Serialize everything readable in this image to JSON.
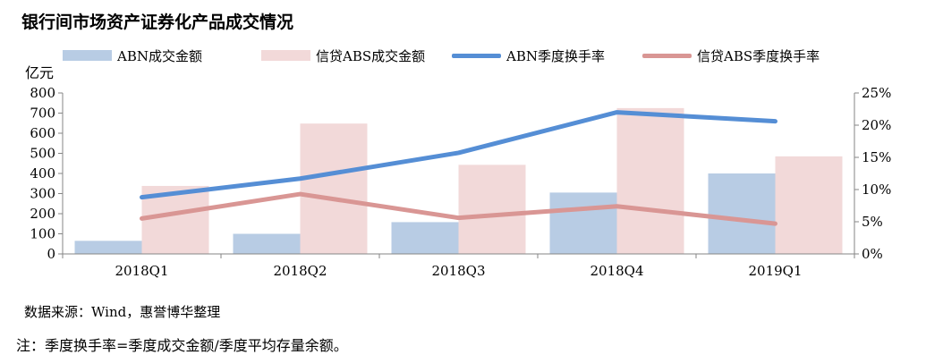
{
  "chart_data": {
    "type": "bar",
    "title": "银行间市场资产证券化产品成交情况",
    "ylabel": "亿元",
    "categories": [
      "2018Q1",
      "2018Q2",
      "2018Q3",
      "2018Q4",
      "2019Q1"
    ],
    "ylim": [
      0,
      800
    ],
    "yticks": [
      "0",
      "100",
      "200",
      "300",
      "400",
      "500",
      "600",
      "700",
      "800"
    ],
    "y2lim": [
      0,
      0.25
    ],
    "y2ticks": [
      "0%",
      "5%",
      "10%",
      "15%",
      "20%",
      "25%"
    ],
    "series": [
      {
        "name": "ABN成交金额",
        "kind": "bar",
        "axis": "left",
        "color": "#b8cce4",
        "values": [
          65,
          100,
          158,
          305,
          400
        ]
      },
      {
        "name": "信贷ABS成交金额",
        "kind": "bar",
        "axis": "left",
        "color": "#f2d9d9",
        "values": [
          338,
          648,
          443,
          725,
          485
        ]
      },
      {
        "name": "ABN季度换手率",
        "kind": "line",
        "axis": "right",
        "color": "#558ed5",
        "values": [
          0.088,
          0.117,
          0.157,
          0.22,
          0.206
        ]
      },
      {
        "name": "信贷ABS季度换手率",
        "kind": "line",
        "axis": "right",
        "color": "#d99694",
        "values": [
          0.055,
          0.093,
          0.056,
          0.074,
          0.047
        ]
      }
    ]
  },
  "source": "数据来源：Wind，惠誉博华整理",
  "note": "注：季度换手率=季度成交金额/季度平均存量余额。"
}
